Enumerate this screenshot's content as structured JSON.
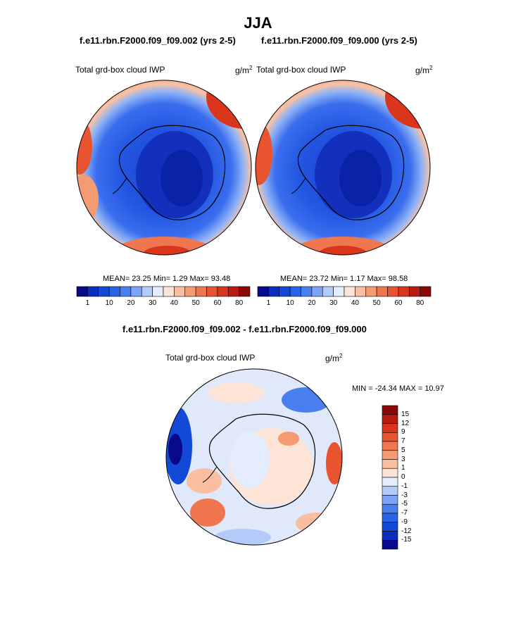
{
  "page_title": "JJA",
  "panels": [
    {
      "case_title": "f.e11.rbn.F2000.f09_f09.002 (yrs 2-5)",
      "variable": "Total grd-box cloud IWP",
      "units": "g/m",
      "units_exp": "2",
      "stats": "MEAN=  23.25  Min=   1.29  Max=  93.48"
    },
    {
      "case_title": "f.e11.rbn.F2000.f09_f09.000 (yrs 2-5)",
      "variable": "Total grd-box cloud IWP",
      "units": "g/m",
      "units_exp": "2",
      "stats": "MEAN=  23.72  Min=   1.17  Max=  98.58"
    }
  ],
  "abs_colorbar": {
    "labels": [
      "1",
      "10",
      "20",
      "30",
      "40",
      "50",
      "60",
      "80"
    ],
    "colors": [
      "#08088a",
      "#0a2fbf",
      "#1249d6",
      "#2b63e8",
      "#4a7ff0",
      "#7ea4f5",
      "#b3cbf9",
      "#e3edfd",
      "#fde4d6",
      "#f9bfa0",
      "#f59b74",
      "#f0764f",
      "#e8542f",
      "#d9341c",
      "#b81b10",
      "#8a0808"
    ]
  },
  "diff": {
    "title": "f.e11.rbn.F2000.f09_f09.002 - f.e11.rbn.F2000.f09_f09.000",
    "variable": "Total grd-box cloud IWP",
    "units": "g/m",
    "units_exp": "2",
    "minmax": "MIN = -24.34 MAX =  10.97",
    "colorbar": {
      "labels": [
        "15",
        "12",
        "9",
        "7",
        "5",
        "3",
        "1",
        "0",
        "-1",
        "-3",
        "-5",
        "-7",
        "-9",
        "-12",
        "-15"
      ],
      "colors": [
        "#8a0808",
        "#b81b10",
        "#d9341c",
        "#e8542f",
        "#f0764f",
        "#f59b74",
        "#f9bfa0",
        "#fde4d6",
        "#e3edfd",
        "#b3cbf9",
        "#7ea4f5",
        "#4a7ff0",
        "#2b63e8",
        "#1249d6",
        "#0a2fbf",
        "#08088a"
      ]
    }
  }
}
